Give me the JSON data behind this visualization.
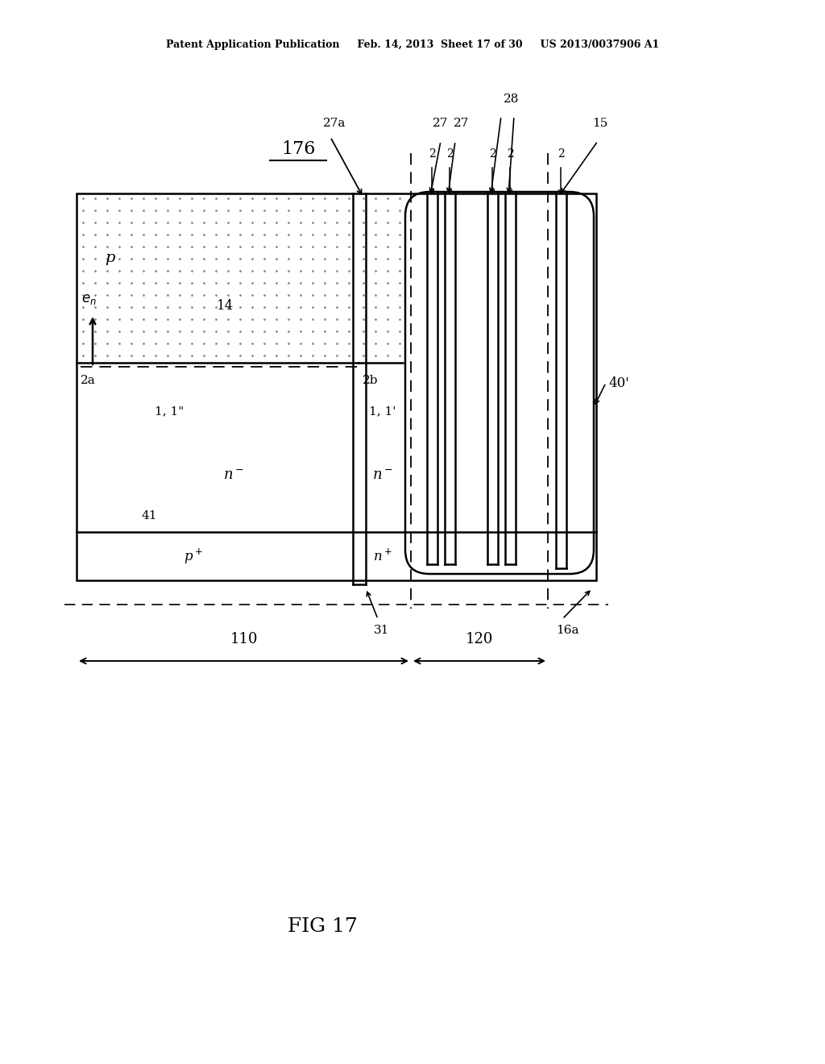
{
  "bg_color": "#ffffff",
  "header_line1": "Patent Application Publication",
  "header_line2": "Feb. 14, 2013  Sheet 17 of 30",
  "header_line3": "US 2013/0037906 A1",
  "caption": "FIG 17"
}
